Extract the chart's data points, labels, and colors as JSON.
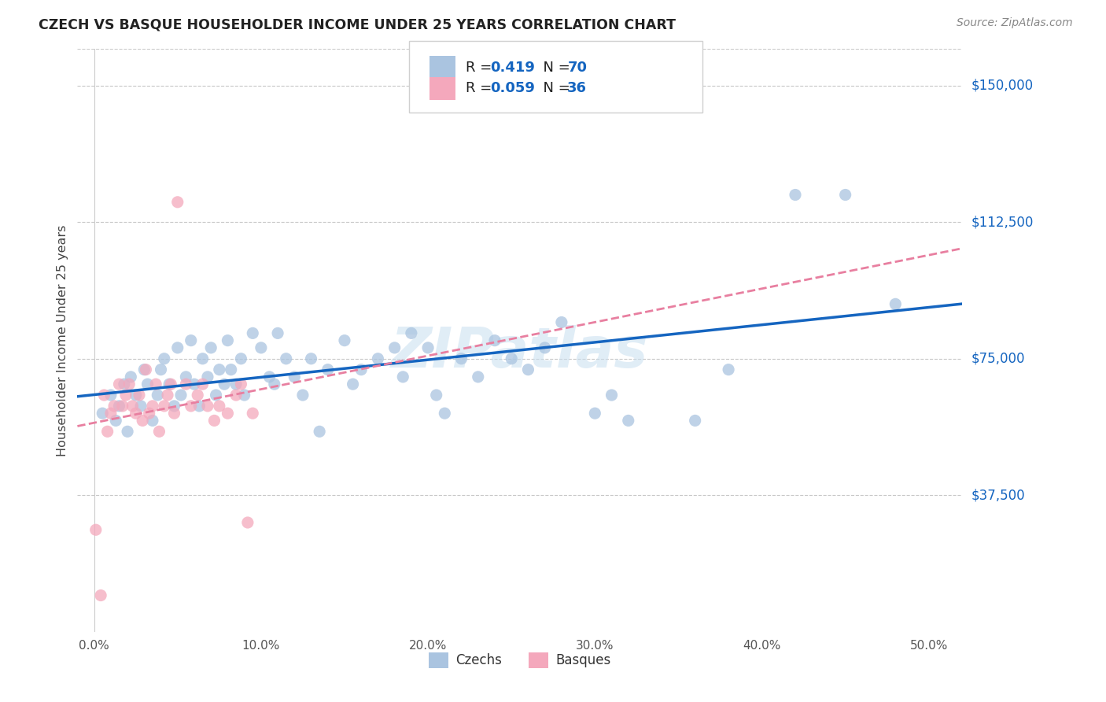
{
  "title": "CZECH VS BASQUE HOUSEHOLDER INCOME UNDER 25 YEARS CORRELATION CHART",
  "source": "Source: ZipAtlas.com",
  "ylabel": "Householder Income Under 25 years",
  "xlabel_ticks": [
    "0.0%",
    "10.0%",
    "20.0%",
    "30.0%",
    "40.0%",
    "50.0%"
  ],
  "xlabel_vals": [
    0.0,
    0.1,
    0.2,
    0.3,
    0.4,
    0.5
  ],
  "ytick_labels": [
    "$37,500",
    "$75,000",
    "$112,500",
    "$150,000"
  ],
  "ytick_vals": [
    37500,
    75000,
    112500,
    150000
  ],
  "xlim": [
    -0.01,
    0.52
  ],
  "ylim": [
    0,
    160000
  ],
  "czech_color": "#aac4e0",
  "basque_color": "#f4a8bc",
  "czech_line_color": "#1565C0",
  "basque_line_color": "#e87fa0",
  "legend_text_color": "#1565C0",
  "watermark": "ZIPatlas",
  "background_color": "#ffffff",
  "grid_color": "#c8c8c8",
  "right_label_color": "#1565C0",
  "czech_scatter_x": [
    0.005,
    0.01,
    0.013,
    0.015,
    0.018,
    0.02,
    0.022,
    0.025,
    0.028,
    0.03,
    0.032,
    0.035,
    0.038,
    0.04,
    0.042,
    0.045,
    0.048,
    0.05,
    0.052,
    0.055,
    0.058,
    0.06,
    0.063,
    0.065,
    0.068,
    0.07,
    0.073,
    0.075,
    0.078,
    0.08,
    0.082,
    0.085,
    0.088,
    0.09,
    0.095,
    0.1,
    0.105,
    0.108,
    0.11,
    0.115,
    0.12,
    0.125,
    0.13,
    0.135,
    0.14,
    0.15,
    0.155,
    0.16,
    0.17,
    0.18,
    0.185,
    0.19,
    0.2,
    0.205,
    0.21,
    0.22,
    0.23,
    0.24,
    0.25,
    0.26,
    0.27,
    0.28,
    0.3,
    0.31,
    0.32,
    0.36,
    0.38,
    0.42,
    0.45,
    0.48
  ],
  "czech_scatter_y": [
    60000,
    65000,
    58000,
    62000,
    68000,
    55000,
    70000,
    65000,
    62000,
    72000,
    68000,
    58000,
    65000,
    72000,
    75000,
    68000,
    62000,
    78000,
    65000,
    70000,
    80000,
    68000,
    62000,
    75000,
    70000,
    78000,
    65000,
    72000,
    68000,
    80000,
    72000,
    68000,
    75000,
    65000,
    82000,
    78000,
    70000,
    68000,
    82000,
    75000,
    70000,
    65000,
    75000,
    55000,
    72000,
    80000,
    68000,
    72000,
    75000,
    78000,
    70000,
    82000,
    78000,
    65000,
    60000,
    75000,
    70000,
    80000,
    75000,
    72000,
    78000,
    85000,
    60000,
    65000,
    58000,
    58000,
    72000,
    120000,
    120000,
    90000
  ],
  "basque_scatter_x": [
    0.001,
    0.004,
    0.006,
    0.008,
    0.01,
    0.012,
    0.015,
    0.017,
    0.019,
    0.021,
    0.023,
    0.025,
    0.027,
    0.029,
    0.031,
    0.033,
    0.035,
    0.037,
    0.039,
    0.042,
    0.044,
    0.046,
    0.048,
    0.05,
    0.055,
    0.058,
    0.062,
    0.065,
    0.068,
    0.072,
    0.075,
    0.08,
    0.085,
    0.088,
    0.092,
    0.095
  ],
  "basque_scatter_y": [
    28000,
    10000,
    65000,
    55000,
    60000,
    62000,
    68000,
    62000,
    65000,
    68000,
    62000,
    60000,
    65000,
    58000,
    72000,
    60000,
    62000,
    68000,
    55000,
    62000,
    65000,
    68000,
    60000,
    118000,
    68000,
    62000,
    65000,
    68000,
    62000,
    58000,
    62000,
    60000,
    65000,
    68000,
    30000,
    60000
  ]
}
